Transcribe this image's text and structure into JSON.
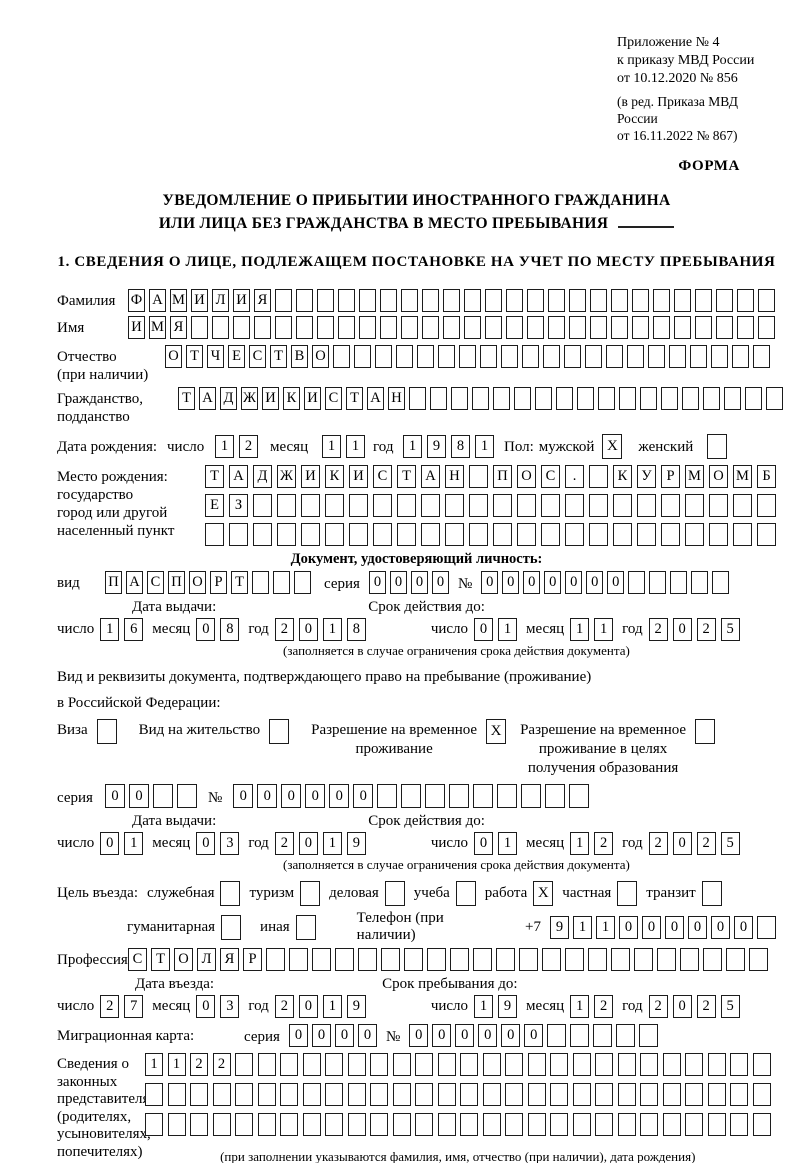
{
  "labels": {
    "day": "число",
    "month": "месяц",
    "year": "год",
    "series": "серия",
    "number": "№"
  },
  "header": {
    "annex_lines": [
      "Приложение № 4",
      "к приказу МВД России",
      "от 10.12.2020 № 856"
    ],
    "amend_lines": [
      "(в ред. Приказа МВД России",
      "от 16.11.2022 № 867)"
    ],
    "form_label": "ФОРМА",
    "title1": "УВЕДОМЛЕНИЕ О ПРИБЫТИИ ИНОСТРАННОГО ГРАЖДАНИНА",
    "title2": "ИЛИ ЛИЦА БЕЗ ГРАЖДАНСТВА В МЕСТО ПРЕБЫВАНИЯ",
    "section1": "1. СВЕДЕНИЯ О ЛИЦЕ, ПОДЛЕЖАЩЕМ ПОСТАНОВКЕ НА УЧЕТ ПО МЕСТУ ПРЕБЫВАНИЯ"
  },
  "person": {
    "surname": {
      "label": "Фамилия",
      "value": "ФАМИЛИЯ",
      "total": 31
    },
    "firstname": {
      "label": "Имя",
      "value": "ИМЯ",
      "total": 31
    },
    "patronymic": {
      "label": "Отчество\n(при наличии)",
      "value": "ОТЧЕСТВО",
      "total": 29
    },
    "citizenship": {
      "label": "Гражданство,\nподданство",
      "value": "ТАДЖИКИСТАН",
      "total": 29
    },
    "birth_date_label": "Дата рождения:",
    "birth_day": {
      "value": "12",
      "total": 2
    },
    "birth_month": {
      "value": "11",
      "total": 2
    },
    "birth_year": {
      "value": "1981",
      "total": 4
    },
    "sex_label": "Пол:",
    "male_label": "мужской",
    "male_box": {
      "value": "X",
      "total": 1
    },
    "female_label": "женский",
    "female_box": {
      "value": "",
      "total": 1
    },
    "birthplace_label": "Место рождения:\nгосударство\nгород или другой\nнаселенный пункт",
    "birthplace_row1": {
      "value": "ТАДЖИКИСТАН ПОС. КУРМОМБ",
      "total": 24
    },
    "birthplace_row2": {
      "value": "ЕЗ",
      "total": 24
    },
    "birthplace_row3": {
      "value": "",
      "total": 24
    }
  },
  "identity_doc": {
    "header": "Документ, удостоверяющий личность:",
    "kind_label": "вид",
    "kind": {
      "value": "ПАСПОРТ",
      "total": 10
    },
    "series": {
      "value": "0000",
      "total": 4
    },
    "number": {
      "value": "0000000",
      "total": 12
    },
    "issued_label": "Дата выдачи:",
    "valid_label": "Срок действия до:",
    "issued_day": {
      "value": "16",
      "total": 2
    },
    "issued_month": {
      "value": "08",
      "total": 2
    },
    "issued_year": {
      "value": "2018",
      "total": 4
    },
    "valid_day": {
      "value": "01",
      "total": 2
    },
    "valid_month": {
      "value": "11",
      "total": 2
    },
    "valid_year": {
      "value": "2025",
      "total": 4
    },
    "note": "(заполняется в случае ограничения срока действия документа)"
  },
  "residence_doc": {
    "intro1": "Вид и реквизиты документа, подтверждающего право на пребывание (проживание)",
    "intro2": "в Российской Федерации:",
    "opt_visa_label": "Виза",
    "opt_visa_box": {
      "value": "",
      "total": 1
    },
    "opt_permit_label": "Вид на жительство",
    "opt_permit_box": {
      "value": "",
      "total": 1
    },
    "opt_rvp_label": "Разрешение на временное\nпроживание",
    "opt_rvp_box": {
      "value": "X",
      "total": 1
    },
    "opt_rvp_edu_label": "Разрешение на временное\nпроживание в целях\nполучения образования",
    "opt_rvp_edu_box": {
      "value": "",
      "total": 1
    },
    "series": {
      "value": "00",
      "total": 4
    },
    "number": {
      "value": "000000",
      "total": 15
    },
    "issued_label": "Дата выдачи:",
    "valid_label": "Срок действия до:",
    "issued_day": {
      "value": "01",
      "total": 2
    },
    "issued_month": {
      "value": "03",
      "total": 2
    },
    "issued_year": {
      "value": "2019",
      "total": 4
    },
    "valid_day": {
      "value": "01",
      "total": 2
    },
    "valid_month": {
      "value": "12",
      "total": 2
    },
    "valid_year": {
      "value": "2025",
      "total": 4
    },
    "note": "(заполняется в случае ограничения срока действия документа)"
  },
  "entry": {
    "purpose_label": "Цель въезда:",
    "p_official": "служебная",
    "b_official": {
      "value": "",
      "total": 1
    },
    "p_tourism": "туризм",
    "b_tourism": {
      "value": "",
      "total": 1
    },
    "p_business": "деловая",
    "b_business": {
      "value": "",
      "total": 1
    },
    "p_study": "учеба",
    "b_study": {
      "value": "",
      "total": 1
    },
    "p_work": "работа",
    "b_work": {
      "value": "X",
      "total": 1
    },
    "p_private": "частная",
    "b_private": {
      "value": "",
      "total": 1
    },
    "p_transit": "транзит",
    "b_transit": {
      "value": "",
      "total": 1
    },
    "p_humanitarian": "гуманитарная",
    "b_humanitarian": {
      "value": "",
      "total": 1
    },
    "p_other": "иная",
    "b_other": {
      "value": "",
      "total": 1
    },
    "phone_label": "Телефон (при наличии)",
    "phone_prefix": "+7",
    "phone": {
      "value": "911000000",
      "total": 10
    },
    "profession_label": "Профессия",
    "profession": {
      "value": "СТОЛЯР",
      "total": 28
    },
    "entry_date_label": "Дата въезда:",
    "stay_label": "Срок пребывания до:",
    "entry_day": {
      "value": "27",
      "total": 2
    },
    "entry_month": {
      "value": "03",
      "total": 2
    },
    "entry_year": {
      "value": "2019",
      "total": 4
    },
    "stay_day": {
      "value": "19",
      "total": 2
    },
    "stay_month": {
      "value": "12",
      "total": 2
    },
    "stay_year": {
      "value": "2025",
      "total": 4
    },
    "migration_label": "Миграционная карта:",
    "mc_series": {
      "value": "0000",
      "total": 4
    },
    "mc_number": {
      "value": "000000",
      "total": 11
    }
  },
  "legal_reps": {
    "label": "Сведения о\nзаконных\nпредставителях\n(родителях,\nусыновителях,\nпопечителях)",
    "row1": {
      "value": "1122",
      "total": 28
    },
    "row2": {
      "value": "",
      "total": 28
    },
    "row3": {
      "value": "",
      "total": 28
    },
    "note": "(при заполнении указываются фамилия, имя, отчество (при наличии), дата рождения)"
  }
}
